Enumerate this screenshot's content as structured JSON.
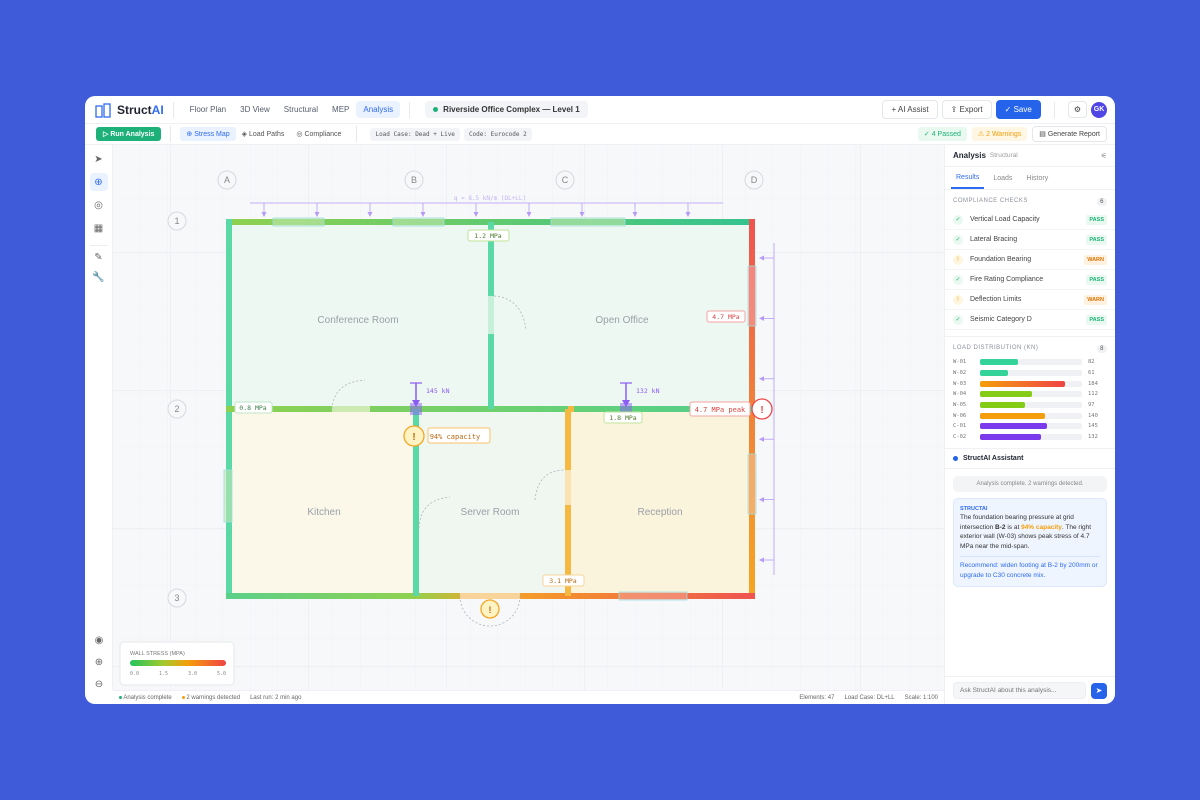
{
  "app": {
    "name_a": "Struct",
    "name_b": "AI"
  },
  "nav": [
    "Floor Plan",
    "3D View",
    "Structural",
    "MEP",
    "Analysis"
  ],
  "project": "Riverside Office Complex — Level 1",
  "actions": {
    "ai_assist": "AI Assist",
    "export": "Export",
    "save": "Save",
    "avatar": "GK"
  },
  "toolbar": {
    "run": "Run Analysis",
    "stress_map": "Stress Map",
    "load_paths": "Load Paths",
    "compliance": "Compliance",
    "load_case": "Load Case: Dead + Live",
    "code": "Code: Eurocode 2",
    "passed": "4 Passed",
    "warnings": "2 Warnings",
    "report": "Generate Report"
  },
  "plan": {
    "cols": [
      "A",
      "B",
      "C",
      "D"
    ],
    "rows": [
      "1",
      "2",
      "3"
    ],
    "udl": "q = 8.5 kN/m (DL+LL)",
    "rooms": [
      "Conference Room",
      "Open Office",
      "Kitchen",
      "Server Room",
      "Reception"
    ],
    "labels": {
      "top": "1.2 MPa",
      "right": "4.7 MPa",
      "left": "0.8 MPa",
      "mid": "1.8 MPa",
      "peak": "4.7 MPa peak",
      "bottom": "3.1 MPa",
      "capacity": "94% capacity",
      "p1": "145 kN",
      "p2": "132 kN"
    },
    "legend": {
      "title": "WALL STRESS (MPA)",
      "ticks": [
        "0.0",
        "1.5",
        "3.0",
        "5.0"
      ]
    }
  },
  "status": {
    "complete": "Analysis complete",
    "warn": "2 warnings detected",
    "last": "Last run: 2 min ago",
    "elements": "Elements: 47",
    "case": "Load Case: DL+LL",
    "scale": "Scale: 1:100"
  },
  "panel": {
    "title": "Analysis",
    "sub": "Structural",
    "tabs": [
      "Results",
      "Loads",
      "History"
    ],
    "compliance_title": "COMPLIANCE CHECKS",
    "compliance_count": "6",
    "checks": [
      {
        "name": "Vertical Load Capacity",
        "status": "PASS"
      },
      {
        "name": "Lateral Bracing",
        "status": "PASS"
      },
      {
        "name": "Foundation Bearing",
        "status": "WARN"
      },
      {
        "name": "Fire Rating Compliance",
        "status": "PASS"
      },
      {
        "name": "Deflection Limits",
        "status": "WARN"
      },
      {
        "name": "Seismic Category D",
        "status": "PASS"
      }
    ],
    "load_title": "LOAD DISTRIBUTION (KN)",
    "load_count": "8",
    "loads": [
      {
        "id": "W-01",
        "v": 82,
        "c": "#34d399"
      },
      {
        "id": "W-02",
        "v": 61,
        "c": "#34d399"
      },
      {
        "id": "W-03",
        "v": 184,
        "c": "linear-gradient(90deg,#f59e0b,#ef4444)"
      },
      {
        "id": "W-04",
        "v": 112,
        "c": "#84cc16"
      },
      {
        "id": "W-05",
        "v": 97,
        "c": "#84cc16"
      },
      {
        "id": "W-06",
        "v": 140,
        "c": "#f59e0b"
      },
      {
        "id": "C-01",
        "v": 145,
        "c": "#7c3aed"
      },
      {
        "id": "C-02",
        "v": 132,
        "c": "#7c3aed"
      }
    ],
    "assistant": "StructAI Assistant",
    "sys": "Analysis complete. 2 warnings detected.",
    "ai_from": "STRUCTAI",
    "ai_1": "The foundation bearing pressure at grid intersection ",
    "ai_b": "B-2",
    "ai_2": " is at ",
    "ai_hl": "94% capacity",
    "ai_3": ". The right exterior wall (W-03) shows peak stress of 4.7 MPa near the mid-span.",
    "ai_rec": "Recommend: widen footing at B-2 by 200mm or upgrade to C30 concrete mix.",
    "placeholder": "Ask StructAI about this analysis..."
  }
}
